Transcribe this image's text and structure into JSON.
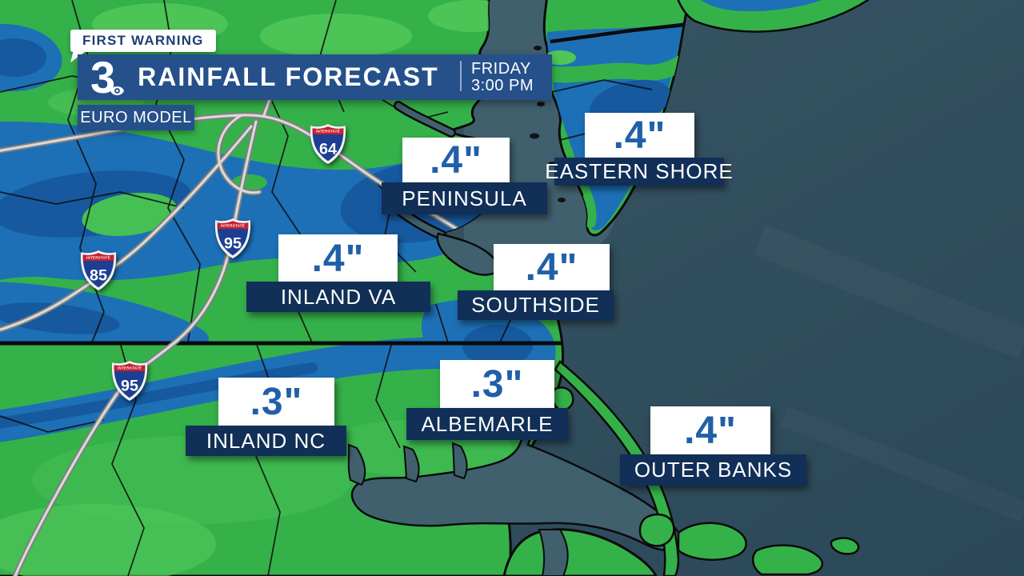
{
  "header": {
    "badge": "FIRST WARNING",
    "station_logo": "3",
    "title": "RAINFALL FORECAST",
    "time": {
      "day": "FRIDAY",
      "clock": "3:00 PM"
    },
    "model": "EURO MODEL"
  },
  "map": {
    "shield_top_label": "INTERSTATE",
    "interstate_shields": [
      {
        "id": "i64",
        "number": "64"
      },
      {
        "id": "i95-north",
        "number": "95"
      },
      {
        "id": "i85",
        "number": "85"
      },
      {
        "id": "i95-south",
        "number": "95"
      }
    ],
    "labels": [
      {
        "id": "peninsula",
        "value": ".4\"",
        "name": "PENINSULA"
      },
      {
        "id": "eastern-shore",
        "value": ".4\"",
        "name": "EASTERN SHORE"
      },
      {
        "id": "inland-va",
        "value": ".4\"",
        "name": "INLAND VA"
      },
      {
        "id": "southside",
        "value": ".4\"",
        "name": "SOUTHSIDE"
      },
      {
        "id": "inland-nc",
        "value": ".3\"",
        "name": "INLAND NC"
      },
      {
        "id": "albemarle",
        "value": ".3\"",
        "name": "ALBEMARLE"
      },
      {
        "id": "outer-banks",
        "value": ".4\"",
        "name": "OUTER BANKS"
      }
    ],
    "legend_colors": {
      "light_rain_green": "#35b14a",
      "lighter_green": "#4fc658",
      "moderate_rain_blue": "#1d70b6",
      "heavy_rain_blue": "#16599f",
      "ocean": "#2f4d5e",
      "inshore_water": "#41606e",
      "header_blue": "#25508a",
      "label_navy": "#112f57",
      "value_text_blue": "#2160a8"
    }
  }
}
